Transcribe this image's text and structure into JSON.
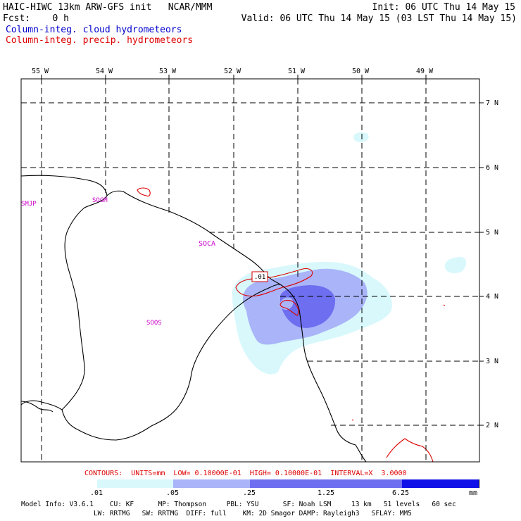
{
  "header": {
    "line1_left": "HAIC-HIWC 13km ARW-GFS init   NCAR/MMM",
    "line1_right": "Init: 06 UTC Thu 14 May 15",
    "line2_left": "Fcst:    0 h",
    "line2_right": "Valid: 06 UTC Thu 14 May 15 (03 LST Thu 14 May 15)",
    "legend_cloud": "Column-integ. cloud hydrometeors",
    "legend_precip": "Column-integ. precip. hydrometeors"
  },
  "axes": {
    "lon_labels": [
      "55 W",
      "54 W",
      "53 W",
      "52 W",
      "51 W",
      "50 W",
      "49 W"
    ],
    "lat_labels": [
      "7 N",
      "6 N",
      "5 N",
      "4 N",
      "3 N",
      "2 N"
    ]
  },
  "stations": [
    "SMJP",
    "SOGM",
    "SOCA",
    "SOOS"
  ],
  "contour_label": ".01",
  "contour_info": "CONTOURS:  UNITS=mm  LOW= 0.10000E-01  HIGH= 0.10000E-01  INTERVAL=X  3.0000",
  "colorbar": {
    "labels": [
      ".01",
      ".05",
      ".25",
      "1.25",
      "6.25"
    ],
    "unit": "mm",
    "colors": [
      "#ffffff",
      "#d8f8fc",
      "#aab4f8",
      "#6e6ef0",
      "#1010e8"
    ]
  },
  "footer": {
    "line1": "Model Info: V3.6.1    CU: KF      MP: Thompson     PBL: YSU      SF: Noah LSM     13 km   51 levels   60 sec",
    "line2": "                  LW: RRTMG   SW: RRTMG  DIFF: full    KM: 2D Smagor DAMP: Rayleigh3   SFLAY: MM5"
  }
}
